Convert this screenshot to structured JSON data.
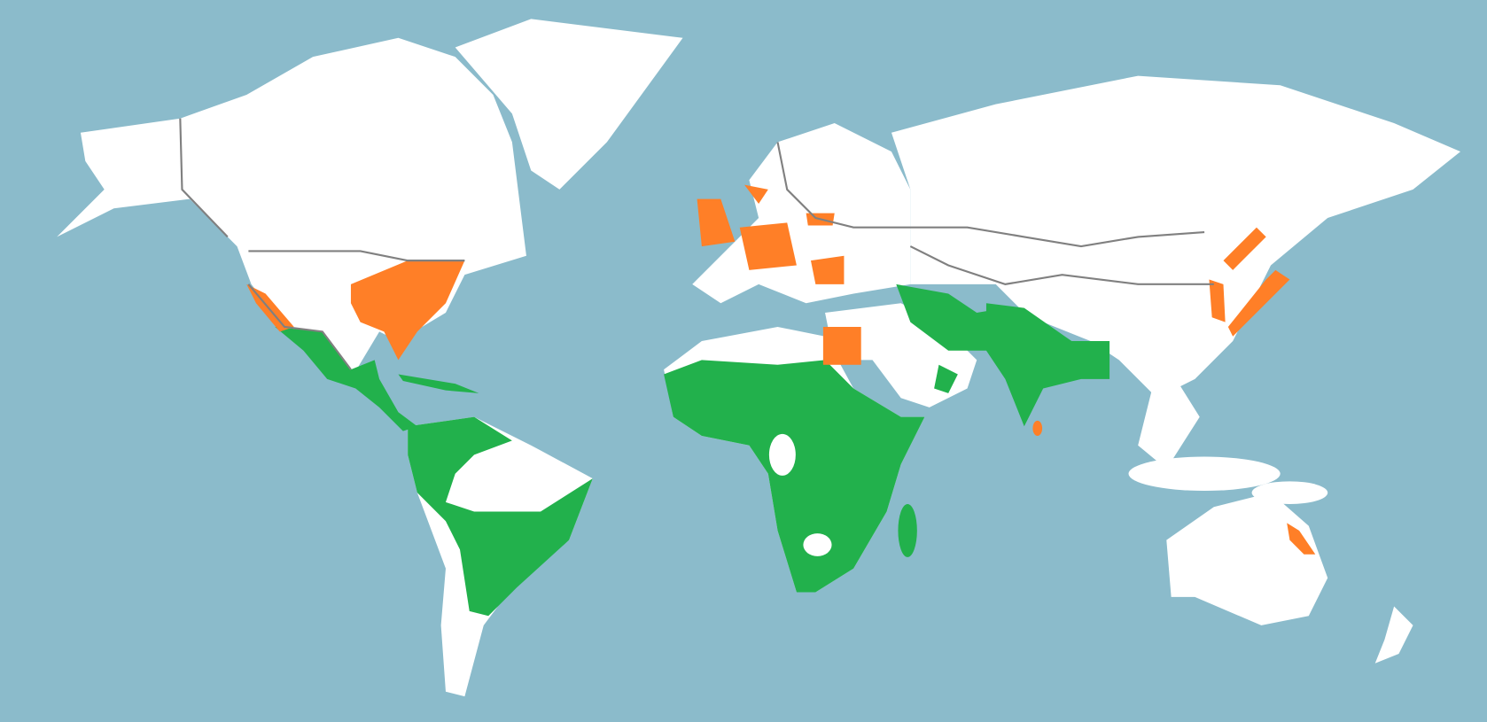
{
  "map": {
    "colors": {
      "ocean": "#8bbbcb",
      "land": "#ffffff",
      "category_green": "#22b14c",
      "category_orange": "#ff7f27",
      "borders": "#808080"
    }
  }
}
